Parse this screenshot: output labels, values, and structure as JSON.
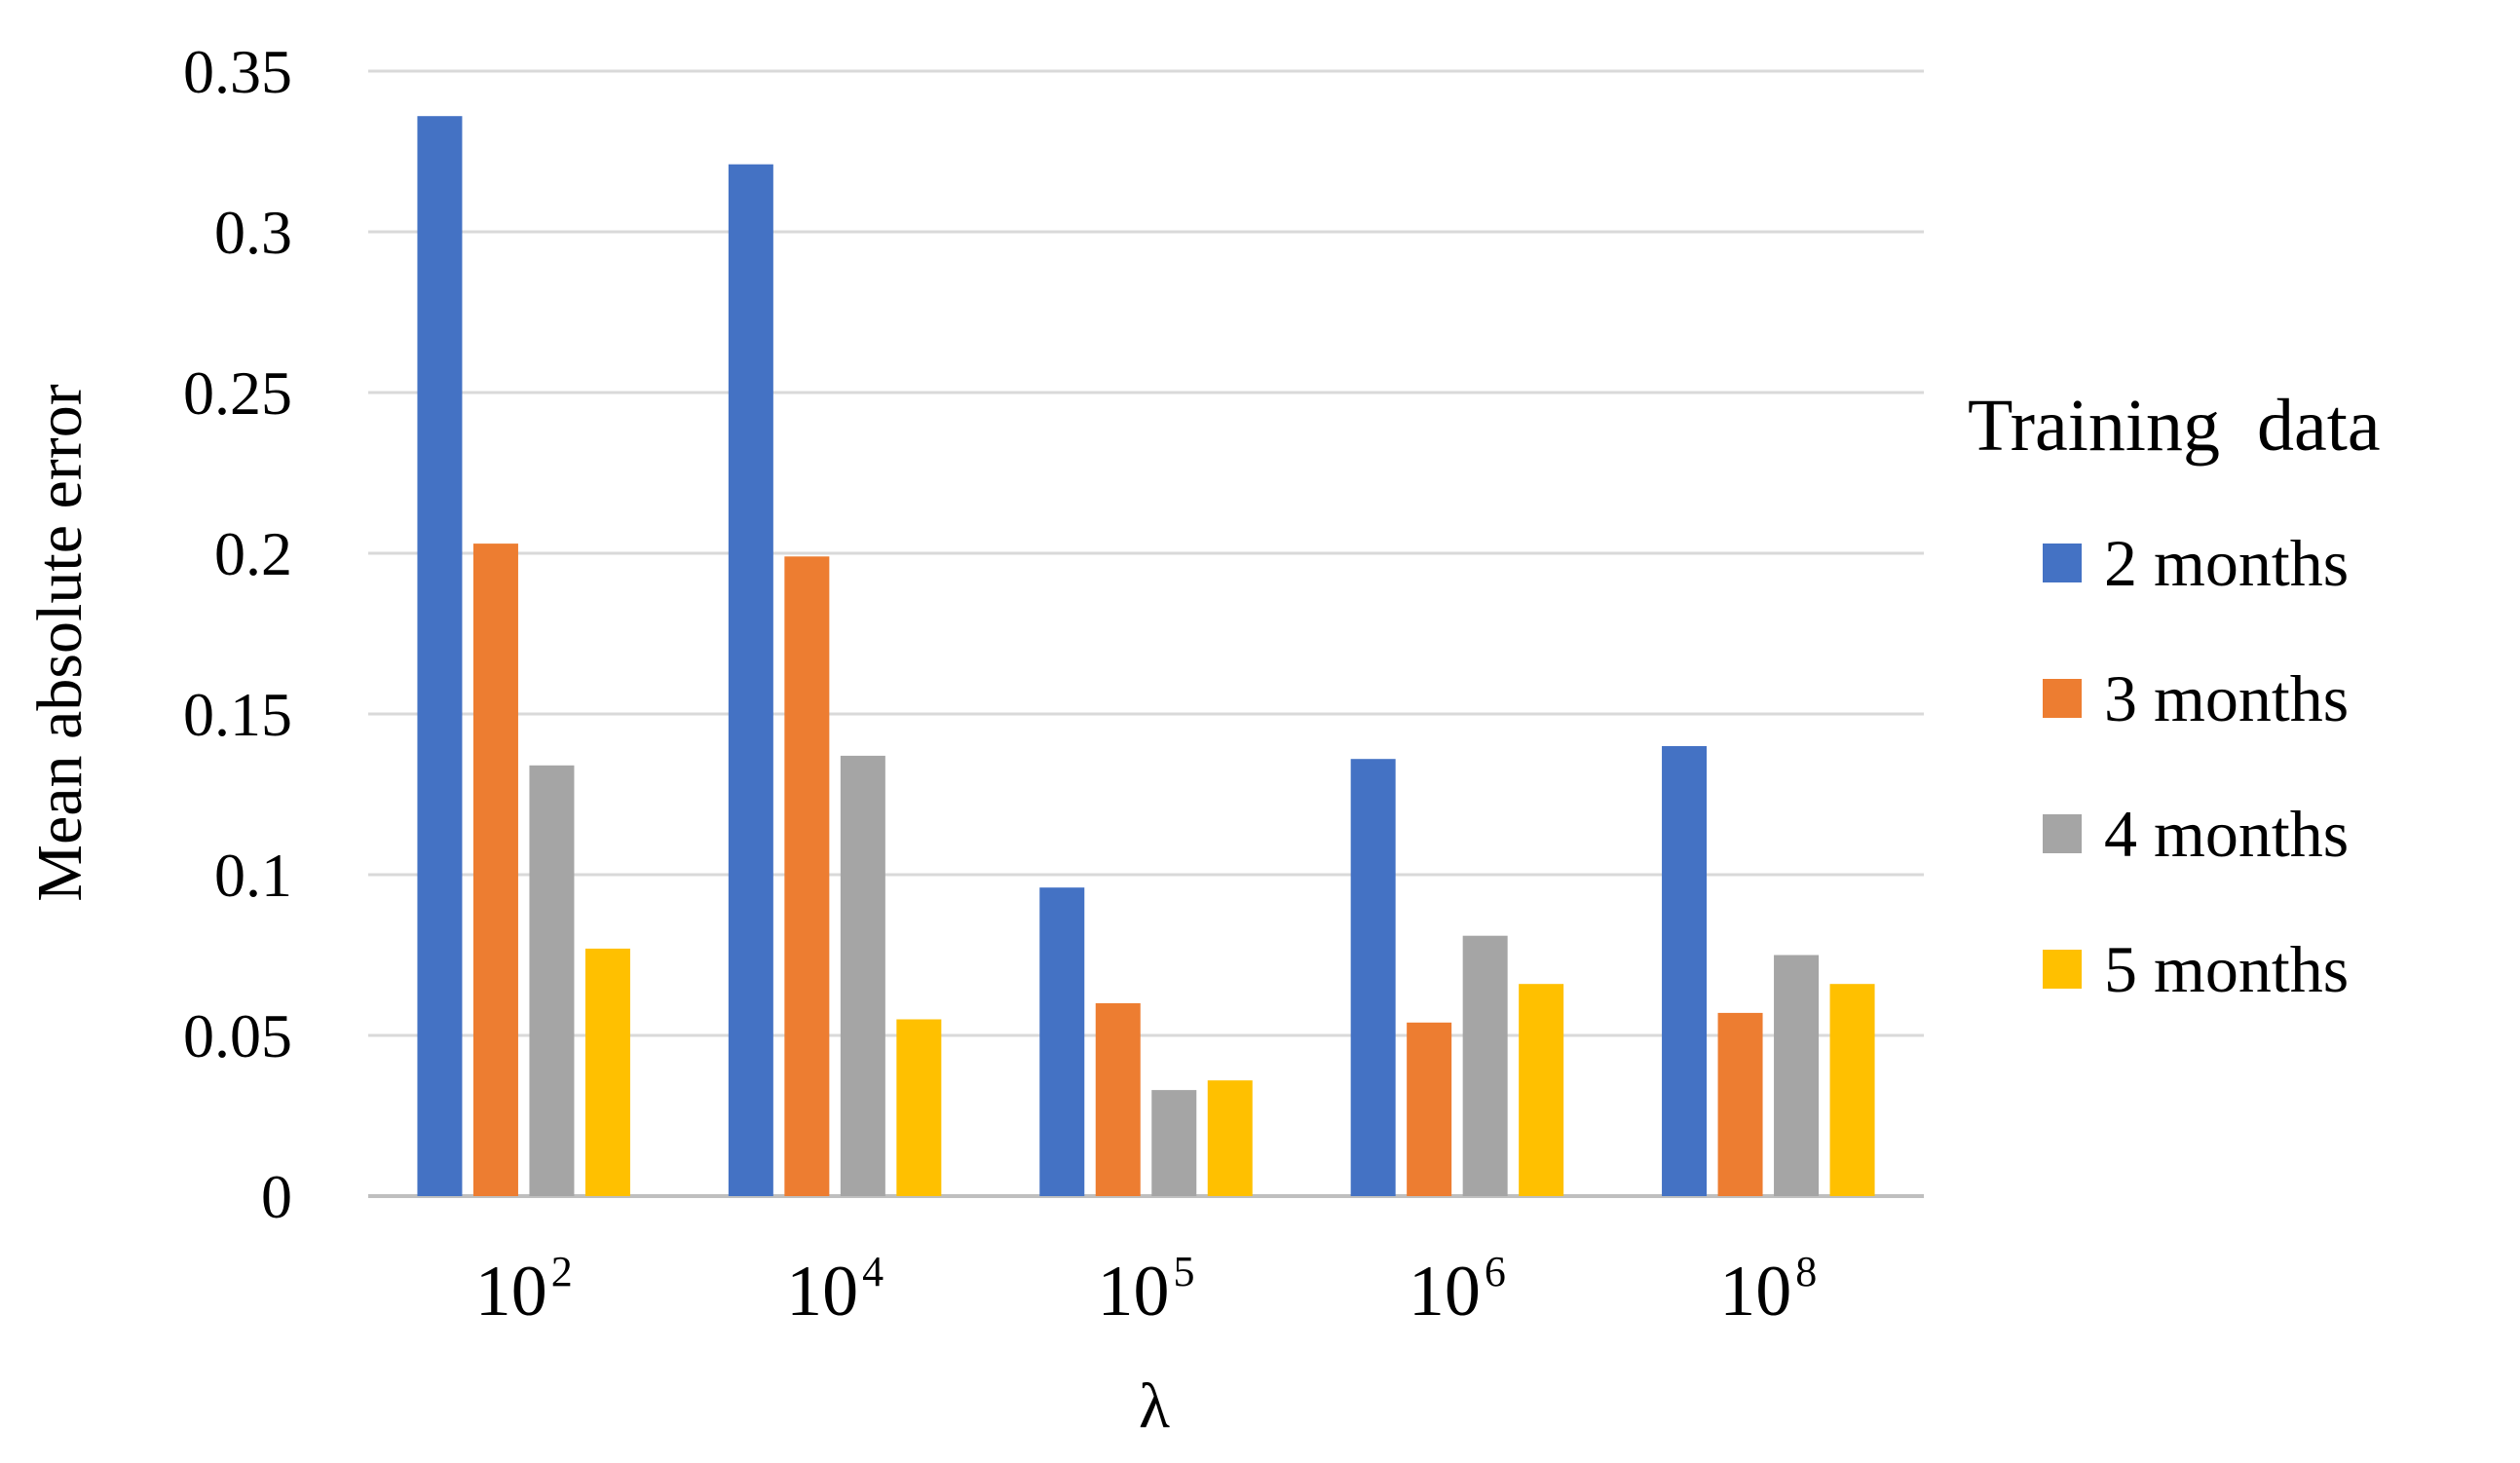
{
  "chart_data": {
    "type": "bar",
    "title": "",
    "xlabel": "λ",
    "ylabel": "Mean absolute error",
    "ylim": [
      0,
      0.35
    ],
    "y_ticks": [
      "0",
      "0.05",
      "0.1",
      "0.15",
      "0.2",
      "0.25",
      "0.3",
      "0.35"
    ],
    "y_tick_values": [
      0,
      0.05,
      0.1,
      0.15,
      0.2,
      0.25,
      0.3,
      0.35
    ],
    "grid": true,
    "categories": [
      {
        "base": "10",
        "exp": "2"
      },
      {
        "base": "10",
        "exp": "4"
      },
      {
        "base": "10",
        "exp": "5"
      },
      {
        "base": "10",
        "exp": "6"
      },
      {
        "base": "10",
        "exp": "8"
      }
    ],
    "legend": {
      "title": "Training  data",
      "placement": "right"
    },
    "series": [
      {
        "name": "2 months",
        "color": "#4472C4",
        "values": [
          0.336,
          0.321,
          0.096,
          0.136,
          0.14
        ]
      },
      {
        "name": "3 months",
        "color": "#ED7D31",
        "values": [
          0.203,
          0.199,
          0.06,
          0.054,
          0.057
        ]
      },
      {
        "name": "4 months",
        "color": "#A5A5A5",
        "values": [
          0.134,
          0.137,
          0.033,
          0.081,
          0.075
        ]
      },
      {
        "name": "5 months",
        "color": "#FFC000",
        "values": [
          0.077,
          0.055,
          0.036,
          0.066,
          0.066
        ]
      }
    ]
  }
}
